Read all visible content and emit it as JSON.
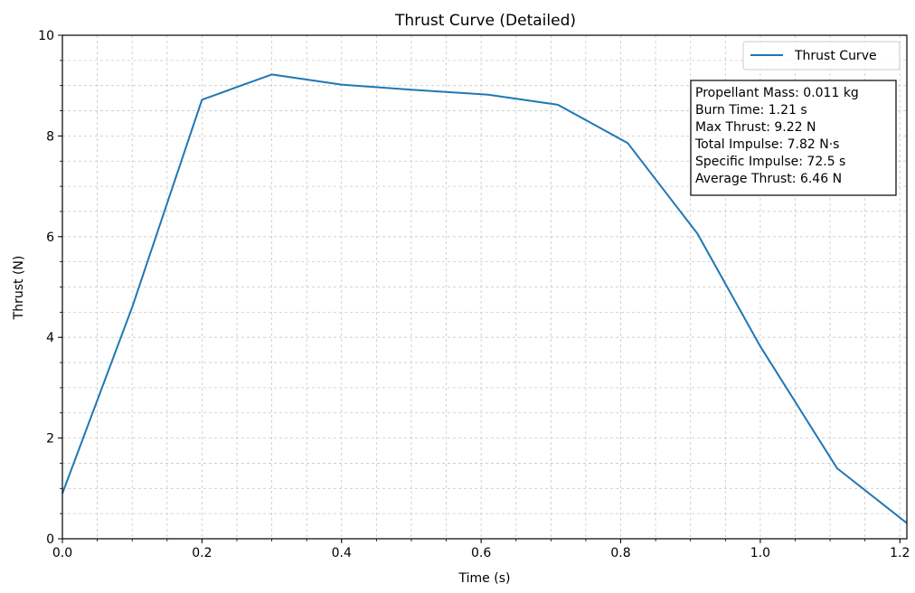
{
  "chart_data": {
    "type": "line",
    "title": "Thrust Curve (Detailed)",
    "xlabel": "Time (s)",
    "ylabel": "Thrust (N)",
    "xlim": [
      0,
      1.21
    ],
    "ylim": [
      0,
      10
    ],
    "x_ticks": [
      0.0,
      0.2,
      0.4,
      0.6,
      0.8,
      1.0,
      1.2
    ],
    "x_tick_labels": [
      "0.0",
      "0.2",
      "0.4",
      "0.6",
      "0.8",
      "1.0",
      "1.2"
    ],
    "y_ticks": [
      0,
      2,
      4,
      6,
      8,
      10
    ],
    "y_tick_labels": [
      "0",
      "2",
      "4",
      "6",
      "8",
      "10"
    ],
    "x_minor_step": 0.05,
    "y_minor_step": 0.5,
    "grid": true,
    "legend_position": "top-right",
    "series": [
      {
        "name": "Thrust Curve",
        "color": "#1f77b4",
        "x": [
          0.0,
          0.1,
          0.2,
          0.3,
          0.4,
          0.5,
          0.61,
          0.71,
          0.81,
          0.91,
          1.0,
          1.11,
          1.21
        ],
        "y": [
          0.9,
          4.6,
          8.72,
          9.22,
          9.02,
          8.92,
          8.82,
          8.62,
          7.86,
          6.06,
          3.82,
          1.4,
          0.31
        ]
      }
    ],
    "annotation_lines": [
      "Propellant Mass: 0.011 kg",
      "Burn Time: 1.21 s",
      "Max Thrust: 9.22 N",
      "Total Impulse: 7.82 N·s",
      "Specific Impulse: 72.5 s",
      "Average Thrust: 6.46 N"
    ]
  }
}
